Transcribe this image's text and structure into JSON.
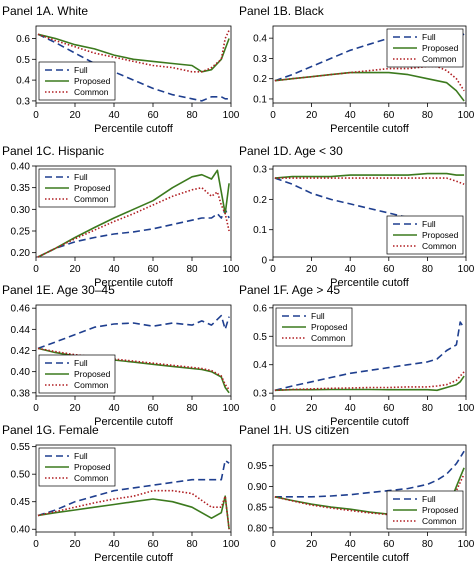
{
  "figure": {
    "legend_labels": [
      "Full",
      "Proposed",
      "Common"
    ],
    "series_colors": {
      "Full": "#1f3f8f",
      "Proposed": "#3c7a1e",
      "Common": "#b01e22"
    }
  },
  "chart_data": [
    {
      "type": "line",
      "title": "Panel 1A. White",
      "xlabel": "Percentile cutoff",
      "ylabel": "",
      "xlim": [
        0,
        100
      ],
      "ylim": [
        0.29,
        0.66
      ],
      "xticks": [
        0,
        20,
        40,
        60,
        80,
        100
      ],
      "yticks": [
        0.3,
        0.4,
        0.5,
        0.6
      ],
      "ytick_labels": [
        "0.3",
        "0.4",
        "0.5",
        "0.6"
      ],
      "legend": "bottom-left",
      "x": [
        1,
        10,
        20,
        30,
        40,
        50,
        60,
        70,
        80,
        85,
        90,
        95,
        97,
        99
      ],
      "series": [
        {
          "name": "Full",
          "values": [
            0.62,
            0.58,
            0.53,
            0.48,
            0.44,
            0.4,
            0.36,
            0.33,
            0.31,
            0.3,
            0.32,
            0.32,
            0.31,
            0.31
          ]
        },
        {
          "name": "Proposed",
          "values": [
            0.62,
            0.6,
            0.57,
            0.55,
            0.52,
            0.5,
            0.49,
            0.48,
            0.47,
            0.44,
            0.45,
            0.5,
            0.55,
            0.6
          ]
        },
        {
          "name": "Common",
          "values": [
            0.62,
            0.59,
            0.56,
            0.53,
            0.51,
            0.49,
            0.47,
            0.46,
            0.44,
            0.44,
            0.46,
            0.5,
            0.6,
            0.64
          ]
        }
      ]
    },
    {
      "type": "line",
      "title": "Panel 1B. Black",
      "xlabel": "Percentile cutoff",
      "ylabel": "",
      "xlim": [
        0,
        100
      ],
      "ylim": [
        0.08,
        0.46
      ],
      "xticks": [
        0,
        20,
        40,
        60,
        80,
        100
      ],
      "yticks": [
        0.1,
        0.2,
        0.3,
        0.4
      ],
      "ytick_labels": [
        "0.1",
        "0.2",
        "0.3",
        "0.4"
      ],
      "legend": "top-right",
      "x": [
        1,
        10,
        20,
        30,
        40,
        50,
        60,
        70,
        80,
        85,
        90,
        95,
        99
      ],
      "series": [
        {
          "name": "Full",
          "values": [
            0.19,
            0.22,
            0.26,
            0.3,
            0.34,
            0.37,
            0.4,
            0.42,
            0.43,
            0.44,
            0.43,
            0.4,
            0.42
          ]
        },
        {
          "name": "Proposed",
          "values": [
            0.19,
            0.2,
            0.21,
            0.22,
            0.23,
            0.23,
            0.23,
            0.22,
            0.2,
            0.19,
            0.18,
            0.14,
            0.09
          ]
        },
        {
          "name": "Common",
          "values": [
            0.19,
            0.2,
            0.21,
            0.22,
            0.23,
            0.24,
            0.25,
            0.25,
            0.26,
            0.26,
            0.24,
            0.2,
            0.14
          ]
        }
      ]
    },
    {
      "type": "line",
      "title": "Panel 1C. Hispanic",
      "xlabel": "Percentile cutoff",
      "ylabel": "",
      "xlim": [
        0,
        100
      ],
      "ylim": [
        0.19,
        0.4
      ],
      "xticks": [
        0,
        20,
        40,
        60,
        80,
        100
      ],
      "yticks": [
        0.2,
        0.25,
        0.3,
        0.35,
        0.4
      ],
      "ytick_labels": [
        "0.20",
        "0.25",
        "0.30",
        "0.35",
        "0.40"
      ],
      "legend": "top-left",
      "x": [
        1,
        10,
        20,
        30,
        40,
        50,
        60,
        70,
        80,
        85,
        90,
        93,
        95,
        97,
        99
      ],
      "series": [
        {
          "name": "Full",
          "values": [
            0.19,
            0.21,
            0.225,
            0.235,
            0.243,
            0.248,
            0.255,
            0.265,
            0.275,
            0.28,
            0.28,
            0.29,
            0.28,
            0.3,
            0.28
          ]
        },
        {
          "name": "Proposed",
          "values": [
            0.19,
            0.21,
            0.235,
            0.258,
            0.28,
            0.3,
            0.32,
            0.35,
            0.375,
            0.38,
            0.37,
            0.39,
            0.34,
            0.29,
            0.36
          ]
        },
        {
          "name": "Common",
          "values": [
            0.19,
            0.21,
            0.232,
            0.252,
            0.272,
            0.29,
            0.31,
            0.33,
            0.345,
            0.35,
            0.33,
            0.34,
            0.31,
            0.29,
            0.25
          ]
        }
      ]
    },
    {
      "type": "line",
      "title": "Panel 1D. Age < 30",
      "xlabel": "Percentile cutoff",
      "ylabel": "",
      "xlim": [
        0,
        100
      ],
      "ylim": [
        0.01,
        0.31
      ],
      "xticks": [
        0,
        20,
        40,
        60,
        80,
        100
      ],
      "yticks": [
        0,
        0.1,
        0.2,
        0.3
      ],
      "ytick_labels": [
        "0",
        "0.1",
        "0.2",
        "0.3"
      ],
      "legend": "bottom-right",
      "x": [
        1,
        10,
        20,
        30,
        40,
        50,
        60,
        70,
        80,
        90,
        95,
        99
      ],
      "series": [
        {
          "name": "Full",
          "values": [
            0.27,
            0.25,
            0.22,
            0.2,
            0.185,
            0.17,
            0.155,
            0.14,
            0.125,
            0.1,
            0.07,
            0.025
          ]
        },
        {
          "name": "Proposed",
          "values": [
            0.27,
            0.275,
            0.275,
            0.275,
            0.28,
            0.28,
            0.28,
            0.28,
            0.285,
            0.285,
            0.28,
            0.28
          ]
        },
        {
          "name": "Common",
          "values": [
            0.27,
            0.27,
            0.27,
            0.27,
            0.27,
            0.27,
            0.27,
            0.27,
            0.27,
            0.27,
            0.26,
            0.25
          ]
        }
      ]
    },
    {
      "type": "line",
      "title": "Panel 1E. Age 30–45",
      "xlabel": "Percentile cutoff",
      "ylabel": "",
      "xlim": [
        0,
        100
      ],
      "ylim": [
        0.377,
        0.463
      ],
      "xticks": [
        0,
        20,
        40,
        60,
        80,
        100
      ],
      "yticks": [
        0.38,
        0.4,
        0.42,
        0.44,
        0.46
      ],
      "ytick_labels": [
        "0.38",
        "0.40",
        "0.42",
        "0.44",
        "0.46"
      ],
      "legend": "bottom-left",
      "x": [
        1,
        10,
        20,
        30,
        40,
        50,
        60,
        70,
        80,
        85,
        90,
        95,
        97,
        99
      ],
      "series": [
        {
          "name": "Full",
          "values": [
            0.422,
            0.428,
            0.435,
            0.442,
            0.445,
            0.446,
            0.443,
            0.446,
            0.444,
            0.448,
            0.444,
            0.453,
            0.44,
            0.452
          ]
        },
        {
          "name": "Proposed",
          "values": [
            0.422,
            0.418,
            0.415,
            0.413,
            0.411,
            0.409,
            0.407,
            0.405,
            0.403,
            0.402,
            0.4,
            0.395,
            0.385,
            0.38
          ]
        },
        {
          "name": "Common",
          "values": [
            0.422,
            0.419,
            0.416,
            0.414,
            0.412,
            0.41,
            0.408,
            0.406,
            0.404,
            0.403,
            0.401,
            0.396,
            0.388,
            0.383
          ]
        }
      ]
    },
    {
      "type": "line",
      "title": "Panel 1F. Age > 45",
      "xlabel": "Percentile cutoff",
      "ylabel": "",
      "xlim": [
        0,
        100
      ],
      "ylim": [
        0.29,
        0.61
      ],
      "xticks": [
        0,
        20,
        40,
        60,
        80,
        100
      ],
      "yticks": [
        0.3,
        0.4,
        0.5,
        0.6
      ],
      "ytick_labels": [
        "0.3",
        "0.4",
        "0.5",
        "0.6"
      ],
      "legend": "top-left",
      "x": [
        1,
        10,
        20,
        30,
        40,
        50,
        60,
        70,
        80,
        85,
        90,
        95,
        97,
        99
      ],
      "series": [
        {
          "name": "Full",
          "values": [
            0.31,
            0.325,
            0.34,
            0.355,
            0.37,
            0.38,
            0.39,
            0.4,
            0.41,
            0.42,
            0.45,
            0.47,
            0.55,
            0.53
          ]
        },
        {
          "name": "Proposed",
          "values": [
            0.31,
            0.312,
            0.312,
            0.313,
            0.313,
            0.313,
            0.312,
            0.312,
            0.312,
            0.31,
            0.32,
            0.33,
            0.34,
            0.36
          ]
        },
        {
          "name": "Common",
          "values": [
            0.31,
            0.313,
            0.315,
            0.317,
            0.318,
            0.32,
            0.32,
            0.322,
            0.322,
            0.325,
            0.33,
            0.345,
            0.36,
            0.375
          ]
        }
      ]
    },
    {
      "type": "line",
      "title": "Panel 1G. Female",
      "xlabel": "Percentile cutoff",
      "ylabel": "",
      "xlim": [
        0,
        100
      ],
      "ylim": [
        0.395,
        0.553
      ],
      "xticks": [
        0,
        20,
        40,
        60,
        80,
        100
      ],
      "yticks": [
        0.4,
        0.45,
        0.5,
        0.55
      ],
      "ytick_labels": [
        "0.40",
        "0.45",
        "0.50",
        "0.55"
      ],
      "legend": "top-left",
      "x": [
        1,
        10,
        20,
        30,
        40,
        50,
        60,
        70,
        80,
        90,
        95,
        97,
        99
      ],
      "series": [
        {
          "name": "Full",
          "values": [
            0.425,
            0.435,
            0.45,
            0.46,
            0.47,
            0.475,
            0.48,
            0.485,
            0.49,
            0.49,
            0.49,
            0.525,
            0.52
          ]
        },
        {
          "name": "Proposed",
          "values": [
            0.425,
            0.43,
            0.435,
            0.44,
            0.445,
            0.45,
            0.455,
            0.45,
            0.44,
            0.42,
            0.43,
            0.46,
            0.4
          ]
        },
        {
          "name": "Common",
          "values": [
            0.425,
            0.432,
            0.44,
            0.448,
            0.455,
            0.46,
            0.47,
            0.47,
            0.465,
            0.44,
            0.44,
            0.46,
            0.4
          ]
        }
      ]
    },
    {
      "type": "line",
      "title": "Panel 1H. US citizen",
      "xlabel": "Percentile cutoff",
      "ylabel": "",
      "xlim": [
        0,
        100
      ],
      "ylim": [
        0.79,
        1.0
      ],
      "xticks": [
        0,
        20,
        40,
        60,
        80,
        100
      ],
      "yticks": [
        0.8,
        0.85,
        0.9,
        0.95
      ],
      "ytick_labels": [
        "0.80",
        "0.85",
        "0.90",
        "0.95"
      ],
      "legend": "bottom-right",
      "x": [
        1,
        10,
        20,
        30,
        40,
        50,
        60,
        70,
        80,
        85,
        90,
        95,
        99
      ],
      "series": [
        {
          "name": "Full",
          "values": [
            0.875,
            0.875,
            0.875,
            0.877,
            0.88,
            0.885,
            0.89,
            0.895,
            0.905,
            0.915,
            0.93,
            0.955,
            0.985
          ]
        },
        {
          "name": "Proposed",
          "values": [
            0.875,
            0.866,
            0.857,
            0.85,
            0.845,
            0.838,
            0.833,
            0.83,
            0.828,
            0.82,
            0.84,
            0.9,
            0.945
          ]
        },
        {
          "name": "Common",
          "values": [
            0.875,
            0.865,
            0.855,
            0.848,
            0.842,
            0.836,
            0.832,
            0.835,
            0.838,
            0.835,
            0.845,
            0.89,
            0.93
          ]
        }
      ]
    }
  ]
}
